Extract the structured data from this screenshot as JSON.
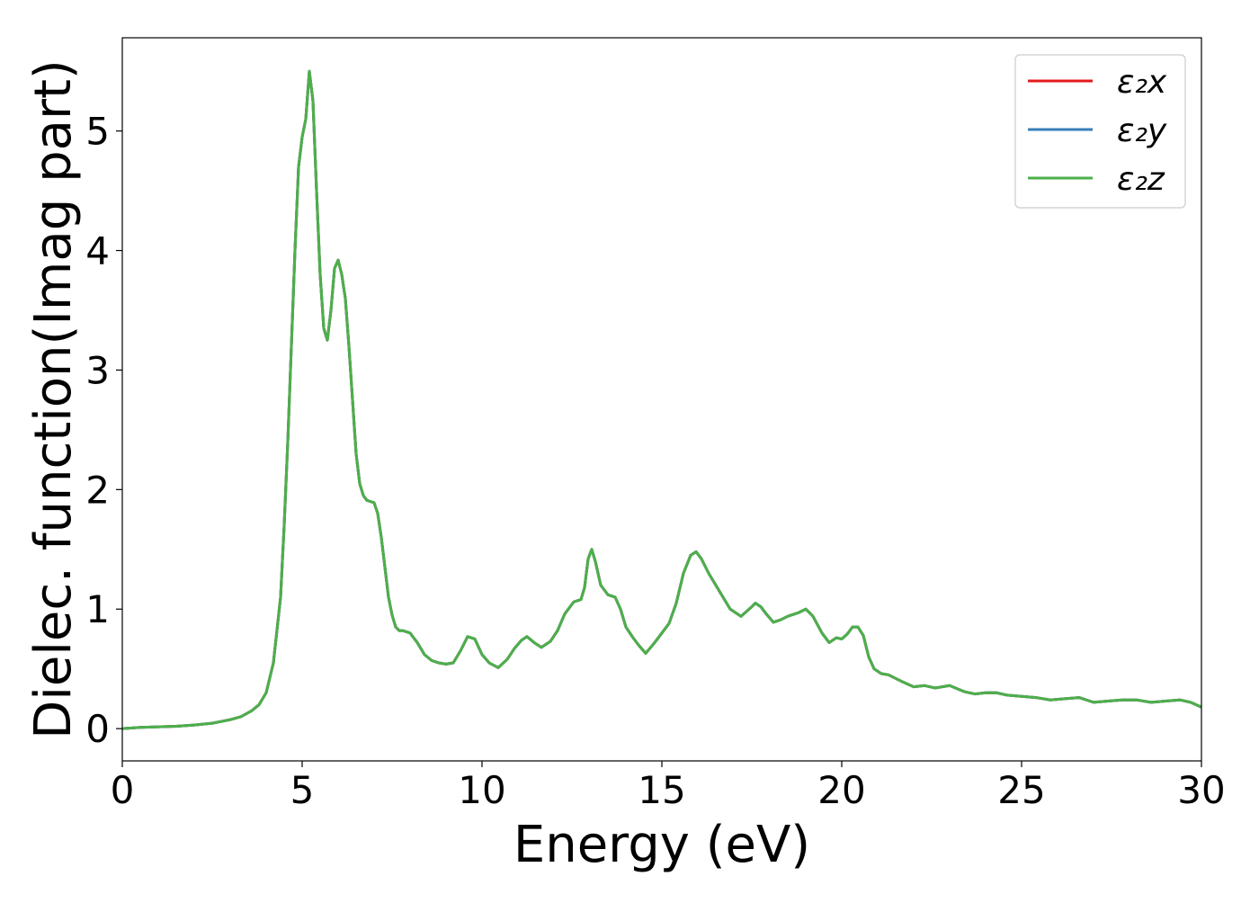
{
  "chart_data": {
    "type": "line",
    "xlabel": "Energy (eV)",
    "ylabel": "Dielec. function(Imag part)",
    "xlim": [
      0,
      30
    ],
    "ylim": [
      -0.27,
      5.78
    ],
    "xticks": [
      0,
      5,
      10,
      15,
      20,
      25,
      30
    ],
    "yticks": [
      0,
      1,
      2,
      3,
      4,
      5
    ],
    "grid": false,
    "legend_position": "top-right",
    "x": [
      0,
      0.5,
      1,
      1.5,
      2,
      2.5,
      3,
      3.3,
      3.6,
      3.8,
      4.0,
      4.2,
      4.4,
      4.5,
      4.6,
      4.7,
      4.8,
      4.9,
      5.0,
      5.1,
      5.2,
      5.3,
      5.4,
      5.5,
      5.6,
      5.7,
      5.8,
      5.9,
      6.0,
      6.1,
      6.2,
      6.3,
      6.4,
      6.5,
      6.6,
      6.7,
      6.8,
      6.9,
      7.0,
      7.1,
      7.2,
      7.3,
      7.4,
      7.5,
      7.6,
      7.7,
      7.8,
      8.0,
      8.2,
      8.4,
      8.6,
      8.8,
      9.0,
      9.2,
      9.4,
      9.6,
      9.8,
      10.0,
      10.2,
      10.45,
      10.7,
      10.9,
      11.1,
      11.25,
      11.45,
      11.65,
      11.9,
      12.1,
      12.3,
      12.55,
      12.75,
      12.85,
      12.95,
      13.05,
      13.15,
      13.3,
      13.5,
      13.7,
      13.85,
      14.0,
      14.2,
      14.35,
      14.55,
      14.8,
      15.0,
      15.2,
      15.4,
      15.6,
      15.8,
      15.95,
      16.1,
      16.3,
      16.6,
      16.9,
      17.2,
      17.5,
      17.6,
      17.75,
      17.9,
      18.1,
      18.3,
      18.5,
      18.8,
      19.0,
      19.2,
      19.45,
      19.65,
      19.85,
      20.0,
      20.15,
      20.3,
      20.45,
      20.6,
      20.75,
      20.9,
      21.1,
      21.3,
      21.7,
      22.0,
      22.3,
      22.6,
      23.0,
      23.4,
      23.7,
      24.0,
      24.3,
      24.6,
      25.0,
      25.4,
      25.8,
      26.2,
      26.6,
      27.0,
      27.4,
      27.8,
      28.2,
      28.6,
      29.0,
      29.4,
      29.7,
      30.0
    ],
    "series": [
      {
        "name": "ε₂x",
        "color": "#e41a1c",
        "values": [
          0.0,
          0.01,
          0.015,
          0.02,
          0.03,
          0.045,
          0.075,
          0.1,
          0.15,
          0.2,
          0.3,
          0.55,
          1.1,
          1.7,
          2.4,
          3.2,
          4.0,
          4.7,
          4.95,
          5.1,
          5.5,
          5.25,
          4.5,
          3.8,
          3.35,
          3.25,
          3.5,
          3.85,
          3.92,
          3.8,
          3.6,
          3.2,
          2.75,
          2.3,
          2.05,
          1.95,
          1.91,
          1.9,
          1.89,
          1.8,
          1.6,
          1.35,
          1.1,
          0.95,
          0.85,
          0.82,
          0.82,
          0.8,
          0.72,
          0.62,
          0.57,
          0.55,
          0.54,
          0.55,
          0.65,
          0.77,
          0.75,
          0.62,
          0.55,
          0.51,
          0.58,
          0.67,
          0.74,
          0.77,
          0.72,
          0.68,
          0.73,
          0.82,
          0.96,
          1.06,
          1.08,
          1.18,
          1.42,
          1.5,
          1.4,
          1.2,
          1.12,
          1.1,
          1.0,
          0.85,
          0.76,
          0.7,
          0.63,
          0.72,
          0.8,
          0.88,
          1.05,
          1.3,
          1.45,
          1.48,
          1.42,
          1.3,
          1.15,
          1.0,
          0.94,
          1.02,
          1.05,
          1.02,
          0.96,
          0.89,
          0.91,
          0.94,
          0.97,
          1.0,
          0.94,
          0.8,
          0.72,
          0.76,
          0.75,
          0.79,
          0.85,
          0.85,
          0.78,
          0.6,
          0.5,
          0.46,
          0.45,
          0.39,
          0.35,
          0.36,
          0.34,
          0.36,
          0.31,
          0.29,
          0.3,
          0.3,
          0.28,
          0.27,
          0.26,
          0.24,
          0.25,
          0.26,
          0.22,
          0.23,
          0.24,
          0.24,
          0.22,
          0.23,
          0.24,
          0.22,
          0.18
        ]
      },
      {
        "name": "ε₂y",
        "color": "#377eb8",
        "values": [
          0.0,
          0.01,
          0.015,
          0.02,
          0.03,
          0.045,
          0.075,
          0.1,
          0.15,
          0.2,
          0.3,
          0.55,
          1.1,
          1.7,
          2.4,
          3.2,
          4.0,
          4.7,
          4.95,
          5.1,
          5.5,
          5.25,
          4.5,
          3.8,
          3.35,
          3.25,
          3.5,
          3.85,
          3.92,
          3.8,
          3.6,
          3.2,
          2.75,
          2.3,
          2.05,
          1.95,
          1.91,
          1.9,
          1.89,
          1.8,
          1.6,
          1.35,
          1.1,
          0.95,
          0.85,
          0.82,
          0.82,
          0.8,
          0.72,
          0.62,
          0.57,
          0.55,
          0.54,
          0.55,
          0.65,
          0.77,
          0.75,
          0.62,
          0.55,
          0.51,
          0.58,
          0.67,
          0.74,
          0.77,
          0.72,
          0.68,
          0.73,
          0.82,
          0.96,
          1.06,
          1.08,
          1.18,
          1.42,
          1.5,
          1.4,
          1.2,
          1.12,
          1.1,
          1.0,
          0.85,
          0.76,
          0.7,
          0.63,
          0.72,
          0.8,
          0.88,
          1.05,
          1.3,
          1.45,
          1.48,
          1.42,
          1.3,
          1.15,
          1.0,
          0.94,
          1.02,
          1.05,
          1.02,
          0.96,
          0.89,
          0.91,
          0.94,
          0.97,
          1.0,
          0.94,
          0.8,
          0.72,
          0.76,
          0.75,
          0.79,
          0.85,
          0.85,
          0.78,
          0.6,
          0.5,
          0.46,
          0.45,
          0.39,
          0.35,
          0.36,
          0.34,
          0.36,
          0.31,
          0.29,
          0.3,
          0.3,
          0.28,
          0.27,
          0.26,
          0.24,
          0.25,
          0.26,
          0.22,
          0.23,
          0.24,
          0.24,
          0.22,
          0.23,
          0.24,
          0.22,
          0.18
        ]
      },
      {
        "name": "ε₂z",
        "color": "#4daf4a",
        "values": [
          0.0,
          0.01,
          0.015,
          0.02,
          0.03,
          0.045,
          0.075,
          0.1,
          0.15,
          0.2,
          0.3,
          0.55,
          1.1,
          1.7,
          2.4,
          3.2,
          4.0,
          4.7,
          4.95,
          5.1,
          5.5,
          5.25,
          4.5,
          3.8,
          3.35,
          3.25,
          3.5,
          3.85,
          3.92,
          3.8,
          3.6,
          3.2,
          2.75,
          2.3,
          2.05,
          1.95,
          1.91,
          1.9,
          1.89,
          1.8,
          1.6,
          1.35,
          1.1,
          0.95,
          0.85,
          0.82,
          0.82,
          0.8,
          0.72,
          0.62,
          0.57,
          0.55,
          0.54,
          0.55,
          0.65,
          0.77,
          0.75,
          0.62,
          0.55,
          0.51,
          0.58,
          0.67,
          0.74,
          0.77,
          0.72,
          0.68,
          0.73,
          0.82,
          0.96,
          1.06,
          1.08,
          1.18,
          1.42,
          1.5,
          1.4,
          1.2,
          1.12,
          1.1,
          1.0,
          0.85,
          0.76,
          0.7,
          0.63,
          0.72,
          0.8,
          0.88,
          1.05,
          1.3,
          1.45,
          1.48,
          1.42,
          1.3,
          1.15,
          1.0,
          0.94,
          1.02,
          1.05,
          1.02,
          0.96,
          0.89,
          0.91,
          0.94,
          0.97,
          1.0,
          0.94,
          0.8,
          0.72,
          0.76,
          0.75,
          0.79,
          0.85,
          0.85,
          0.78,
          0.6,
          0.5,
          0.46,
          0.45,
          0.39,
          0.35,
          0.36,
          0.34,
          0.36,
          0.31,
          0.29,
          0.3,
          0.3,
          0.28,
          0.27,
          0.26,
          0.24,
          0.25,
          0.26,
          0.22,
          0.23,
          0.24,
          0.24,
          0.22,
          0.23,
          0.24,
          0.22,
          0.18
        ]
      }
    ]
  }
}
